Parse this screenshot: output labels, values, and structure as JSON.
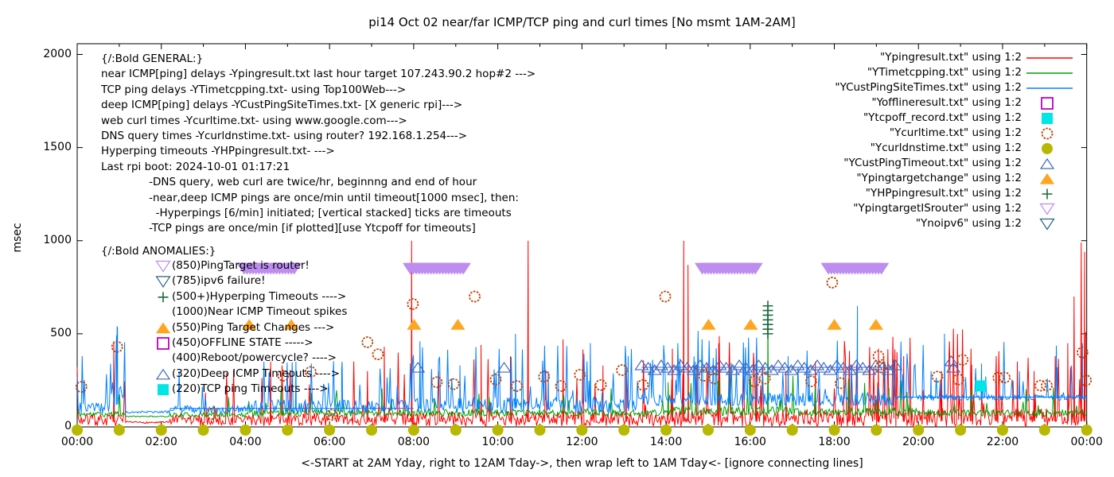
{
  "title": "pi14 Oct 02  near/far ICMP/TCP ping and curl times [No msmt 1AM-2AM]",
  "axes": {
    "ylabel": "msec",
    "yticks": [
      "0",
      "500",
      "1000",
      "1500",
      "2000"
    ],
    "xticks": [
      "00:00",
      "02:00",
      "04:00",
      "06:00",
      "08:00",
      "10:00",
      "12:00",
      "14:00",
      "16:00",
      "18:00",
      "20:00",
      "22:00",
      "00:00"
    ],
    "caption": "<-START at 2AM Yday, right to 12AM Tday->, then wrap left to 1AM Tday<- [ignore connecting lines]"
  },
  "legend": [
    {
      "label": "\"Ypingresult.txt\" using 1:2",
      "swatch": "line",
      "color": "#ff0000"
    },
    {
      "label": "\"YTimetcpping.txt\" using 1:2",
      "swatch": "line",
      "color": "#00a000"
    },
    {
      "label": "\"YCustPingSiteTimes.txt\" using 1:2",
      "swatch": "line",
      "color": "#0080ff"
    },
    {
      "label": "\"Yofflineresult.txt\" using 1:2",
      "swatch": "square-open",
      "color": "#c000c0"
    },
    {
      "label": "\"Ytcpoff_record.txt\" using 1:2",
      "swatch": "square-fill",
      "color": "#00e5e5"
    },
    {
      "label": "\"Ycurltime.txt\" using 1:2",
      "swatch": "circle-open",
      "color": "#c04000"
    },
    {
      "label": "\"Ycurldnstime.txt\" using 1:2",
      "swatch": "circle-fill",
      "color": "#b8b800"
    },
    {
      "label": "\"YCustPingTimeout.txt\" using 1:2",
      "swatch": "tri-up-open",
      "color": "#4169c0"
    },
    {
      "label": "\"Ypingtargetchange\" using 1:2",
      "swatch": "tri-up-fill",
      "color": "#ffa520"
    },
    {
      "label": "\"YHPpingresult.txt\" using 1:2",
      "swatch": "plus",
      "color": "#1a6b3c"
    },
    {
      "label": "\"YpingtargetISrouter\" using 1:2",
      "swatch": "tri-down-open",
      "color": "#bd8df0"
    },
    {
      "label": "\"Ynoipv6\" using 1:2",
      "swatch": "tri-down-open",
      "color": "#2d5f86"
    }
  ],
  "annotations": {
    "general": [
      "{/:Bold GENERAL:}",
      "near ICMP[ping] delays -Ypingresult.txt last hour target 107.243.90.2 hop#2 --->",
      "TCP ping delays -YTimetcpping.txt- using Top100Web--->",
      "deep ICMP[ping] delays -YCustPingSiteTimes.txt- [X generic rpi]--->",
      "web curl times -Ycurltime.txt- using www.google.com--->",
      "DNS query times -Ycurldnstime.txt- using router? 192.168.1.254--->",
      "Hyperping timeouts -YHPpingresult.txt- --->",
      "Last rpi boot: 2024-10-01 01:17:21",
      "              -DNS query, web curl are twice/hr, beginnng and end of hour",
      "              -near,deep ICMP pings are once/min until timeout[1000 msec], then:",
      "                -Hyperpings [6/min] initiated; [vertical stacked] ticks are timeouts",
      "              -TCP pings are once/min [if plotted][use Ytcpoff for timeouts]"
    ],
    "anomalies_header": "{/:Bold ANOMALIES:}",
    "anomalies": [
      {
        "marker": "tri-down-open",
        "color": "#bd8df0",
        "text": "(850)PingTarget is router!"
      },
      {
        "marker": "tri-down-open",
        "color": "#2d5f86",
        "text": "(785)ipv6 failure!"
      },
      {
        "marker": "plus",
        "color": "#1a6b3c",
        "text": "(500+)Hyperping Timeouts ---->"
      },
      {
        "marker": "none",
        "color": "#000000",
        "text": "(1000)Near ICMP Timeout spikes"
      },
      {
        "marker": "tri-up-fill",
        "color": "#ffa520",
        "text": "(550)Ping Target Changes --->"
      },
      {
        "marker": "square-open",
        "color": "#c000c0",
        "text": "(450)OFFLINE STATE ----->"
      },
      {
        "marker": "none",
        "color": "#000000",
        "text": "(400)Reboot/powercycle? ---->"
      },
      {
        "marker": "tri-up-open",
        "color": "#4169c0",
        "text": "(320)Deep ICMP Timeouts ---->"
      },
      {
        "marker": "square-fill",
        "color": "#00e5e5",
        "text": "(220)TCP ping Timeouts ---->"
      }
    ]
  },
  "chart_data": {
    "type": "line",
    "title": "pi14 Oct 02  near/far ICMP/TCP ping and curl times [No msmt 1AM-2AM]",
    "xlabel": "<-START at 2AM Yday, right to 12AM Tday->, then wrap left to 1AM Tday<- [ignore connecting lines]",
    "ylabel": "msec",
    "ylim": [
      0,
      2000
    ],
    "xlim_hours": [
      0,
      24
    ],
    "grid": false,
    "legend_position": "top-right-inside",
    "sample_step_hours": 0.024,
    "series": [
      {
        "name": "Ypingresult.txt",
        "color": "#ff0000",
        "seed": 7,
        "profile": [
          {
            "from": 0,
            "to": 1.15,
            "base": 25,
            "noise": 65,
            "p": 0.07,
            "max": 320
          },
          {
            "from": 1.15,
            "to": 2.2,
            "base": 22,
            "noise": 10,
            "p": 0.0,
            "max": 0
          },
          {
            "from": 2.2,
            "to": 4,
            "base": 25,
            "noise": 60,
            "p": 0.06,
            "max": 300
          },
          {
            "from": 4,
            "to": 8,
            "base": 26,
            "noise": 70,
            "p": 0.08,
            "max": 350
          },
          {
            "from": 8,
            "to": 14,
            "base": 28,
            "noise": 80,
            "p": 0.1,
            "max": 430
          },
          {
            "from": 14,
            "to": 20,
            "base": 28,
            "noise": 95,
            "p": 0.13,
            "max": 450
          },
          {
            "from": 20,
            "to": 24,
            "base": 30,
            "noise": 100,
            "p": 0.16,
            "max": 460
          }
        ],
        "key_spikes": [
          [
            0.87,
            460
          ],
          [
            4.6,
            350
          ],
          [
            6.9,
            300
          ],
          [
            7.3,
            430
          ],
          [
            7.95,
            1000
          ],
          [
            9.6,
            440
          ],
          [
            10.3,
            380
          ],
          [
            10.72,
            1000
          ],
          [
            11.55,
            470
          ],
          [
            12.5,
            330
          ],
          [
            13.05,
            340
          ],
          [
            14.15,
            420
          ],
          [
            14.42,
            1000
          ],
          [
            14.52,
            870
          ],
          [
            15.25,
            450
          ],
          [
            16.15,
            430
          ],
          [
            16.85,
            300
          ],
          [
            17.55,
            350
          ],
          [
            18.35,
            300
          ],
          [
            19.05,
            420
          ],
          [
            19.65,
            380
          ],
          [
            20.55,
            300
          ],
          [
            21.25,
            420
          ],
          [
            21.85,
            380
          ],
          [
            22.35,
            350
          ],
          [
            22.75,
            300
          ],
          [
            23.25,
            380
          ],
          [
            23.55,
            450
          ],
          [
            23.7,
            700
          ],
          [
            23.87,
            990
          ],
          [
            23.95,
            940
          ]
        ]
      },
      {
        "name": "YTimetcpping.txt",
        "color": "#00a000",
        "seed": 11,
        "profile": [
          {
            "from": 0,
            "to": 1.15,
            "base": 62,
            "noise": 30,
            "p": 0.04,
            "max": 120
          },
          {
            "from": 1.15,
            "to": 2.2,
            "base": 55,
            "noise": 6,
            "p": 0.0,
            "max": 0
          },
          {
            "from": 2.2,
            "to": 4,
            "base": 60,
            "noise": 25,
            "p": 0.03,
            "max": 110
          },
          {
            "from": 4,
            "to": 14,
            "base": 68,
            "noise": 38,
            "p": 0.05,
            "max": 160
          },
          {
            "from": 14,
            "to": 17,
            "base": 75,
            "noise": 48,
            "p": 0.12,
            "max": 220
          },
          {
            "from": 17,
            "to": 20,
            "base": 72,
            "noise": 42,
            "p": 0.07,
            "max": 200
          },
          {
            "from": 20,
            "to": 24,
            "base": 68,
            "noise": 36,
            "p": 0.05,
            "max": 160
          }
        ],
        "key_spikes": [
          [
            14.05,
            240
          ],
          [
            16.42,
            650
          ],
          [
            19.3,
            210
          ]
        ]
      },
      {
        "name": "YCustPingSiteTimes.txt",
        "color": "#0080ff",
        "seed": 23,
        "profile": [
          {
            "from": 0,
            "to": 0.8,
            "base": 90,
            "noise": 60,
            "p": 0.1,
            "max": 300
          },
          {
            "from": 0.8,
            "to": 1.15,
            "base": 120,
            "noise": 130,
            "p": 0.3,
            "max": 400
          },
          {
            "from": 1.15,
            "to": 2.2,
            "base": 78,
            "noise": 12,
            "p": 0.0,
            "max": 0
          },
          {
            "from": 2.2,
            "to": 4,
            "base": 85,
            "noise": 45,
            "p": 0.05,
            "max": 220
          },
          {
            "from": 4,
            "to": 8,
            "base": 95,
            "noise": 75,
            "p": 0.12,
            "max": 270
          },
          {
            "from": 8,
            "to": 13.4,
            "base": 100,
            "noise": 85,
            "p": 0.12,
            "max": 350
          },
          {
            "from": 13.4,
            "to": 19.5,
            "base": 135,
            "noise": 75,
            "p": 0.1,
            "max": 350
          },
          {
            "from": 19.5,
            "to": 24,
            "base": 152,
            "noise": 30,
            "p": 0.1,
            "max": 300
          }
        ],
        "key_spikes": [
          [
            0.95,
            540
          ],
          [
            5.2,
            350
          ],
          [
            6.3,
            350
          ],
          [
            8.15,
            460
          ],
          [
            9.1,
            330
          ],
          [
            10.42,
            500
          ],
          [
            11.2,
            300
          ],
          [
            12.2,
            450
          ],
          [
            13.1,
            380
          ],
          [
            14.7,
            350
          ],
          [
            15.5,
            300
          ],
          [
            16.9,
            380
          ],
          [
            17.4,
            300
          ],
          [
            18.55,
            650
          ],
          [
            19.2,
            350
          ],
          [
            20.3,
            300
          ],
          [
            20.62,
            500
          ],
          [
            21.5,
            340
          ],
          [
            22.4,
            300
          ],
          [
            23.3,
            320
          ],
          [
            23.9,
            450
          ]
        ]
      }
    ],
    "connector_lines": [
      {
        "from_h": 2.2,
        "to_h": 8.0,
        "msec": 100,
        "color": "#0080ff"
      },
      {
        "from_h": 19.5,
        "to_h": 24.0,
        "msec": 160,
        "color": "#0080ff"
      },
      {
        "from_h": 13.42,
        "to_h": 19.45,
        "msec": 320,
        "color": "#4169c0"
      }
    ],
    "markers": {
      "curl_circles": {
        "color": "#c04000",
        "points": [
          [
            0.1,
            215
          ],
          [
            0.95,
            430
          ],
          [
            3.2,
            70
          ],
          [
            4.9,
            275
          ],
          [
            5.55,
            295
          ],
          [
            6.05,
            65
          ],
          [
            6.9,
            455
          ],
          [
            7.15,
            390
          ],
          [
            7.98,
            660
          ],
          [
            8.55,
            240
          ],
          [
            8.95,
            230
          ],
          [
            9.45,
            700
          ],
          [
            9.95,
            255
          ],
          [
            10.45,
            220
          ],
          [
            11.1,
            270
          ],
          [
            11.5,
            220
          ],
          [
            11.95,
            280
          ],
          [
            12.45,
            225
          ],
          [
            12.95,
            305
          ],
          [
            13.45,
            225
          ],
          [
            13.98,
            700
          ],
          [
            14.9,
            275
          ],
          [
            15.15,
            260
          ],
          [
            16.1,
            245
          ],
          [
            16.35,
            260
          ],
          [
            17.45,
            245
          ],
          [
            17.95,
            775
          ],
          [
            18.15,
            235
          ],
          [
            19.05,
            380
          ],
          [
            19.1,
            320
          ],
          [
            20.45,
            270
          ],
          [
            20.95,
            255
          ],
          [
            21.05,
            360
          ],
          [
            21.9,
            265
          ],
          [
            22.05,
            265
          ],
          [
            22.9,
            222
          ],
          [
            23.05,
            222
          ],
          [
            23.9,
            400
          ],
          [
            23.98,
            250
          ]
        ]
      },
      "dns_dots": {
        "color": "#b8b800",
        "hours_start": 0,
        "hours_end": 24,
        "step": 1,
        "msec": 0
      },
      "deep_icmp_timeouts": {
        "color": "#4169c0",
        "msec": 320,
        "row": {
          "start": 13.42,
          "end": 19.45,
          "count": 40
        },
        "extra": [
          [
            8.1,
            320
          ],
          [
            10.15,
            320
          ],
          [
            20.78,
            355
          ],
          [
            20.83,
            320
          ]
        ]
      },
      "ping_target_changes": {
        "color": "#ffa520",
        "msec": 550,
        "hours": [
          4.09,
          5.09,
          8.01,
          9.05,
          15.01,
          16.01,
          18.0,
          18.99
        ]
      },
      "router_bands": {
        "color": "#bd8df0",
        "msec": 850,
        "ranges": [
          [
            3.97,
            5.17
          ],
          [
            7.92,
            9.2
          ],
          [
            14.86,
            16.15
          ],
          [
            17.86,
            19.13
          ]
        ]
      },
      "tcp_ping_timeouts": {
        "color": "#00e5e5",
        "points": [
          [
            21.48,
            220
          ]
        ]
      },
      "hyperping_timeouts": {
        "color": "#1a6b3c",
        "hour": 16.42,
        "msec_from": 500,
        "msec_to": 650,
        "step": 25
      }
    }
  }
}
